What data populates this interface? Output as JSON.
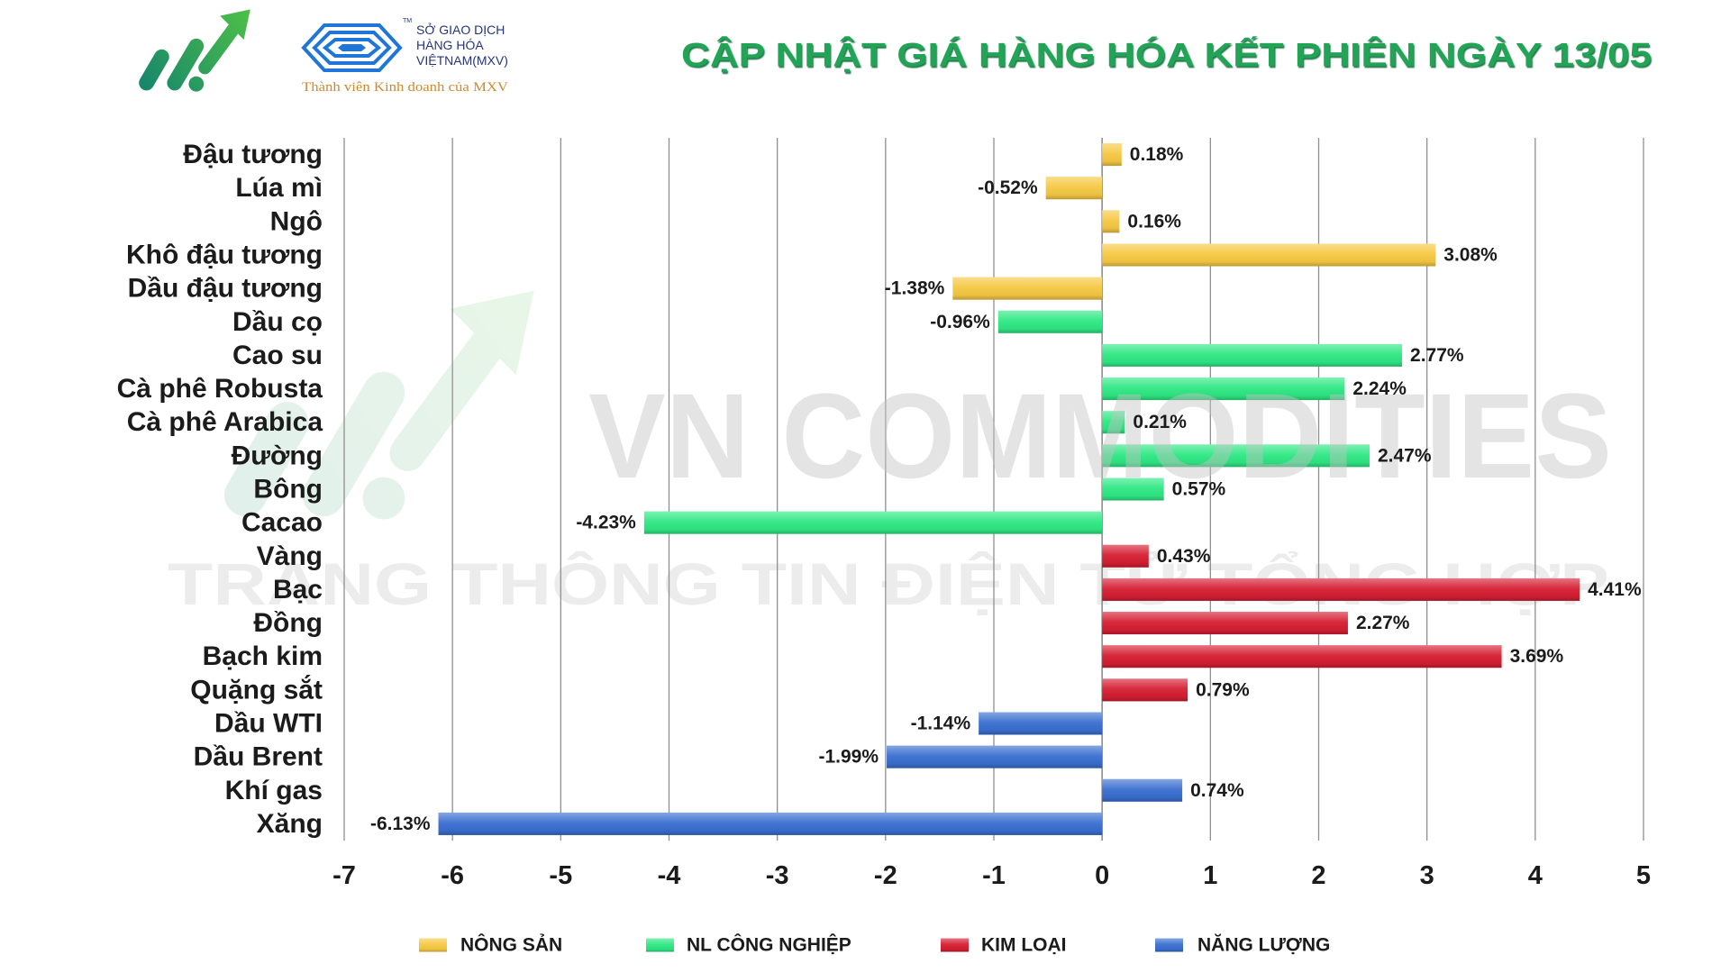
{
  "header": {
    "mxv": {
      "tm": "TM",
      "name_lines": [
        "SỞ GIAO DỊCH",
        "HÀNG HÓA",
        "VIỆTNAM(MXV)"
      ],
      "tagline": "Thành viên Kinh doanh của MXV"
    }
  },
  "watermark": {
    "brand": "VN COMMODITIES",
    "subtitle": "TRANG THÔNG TIN ĐIỆN TỬ TỔNG HỢP"
  },
  "colors": {
    "title": "#22a456",
    "title_shadow": "#11693a",
    "grid": "#8f8f8f",
    "text": "#1b1b1b",
    "watermark_brand": "#c4c4c4",
    "watermark_subtitle": "#ececec",
    "logo_teal": "#12816f",
    "logo_green": "#4fc146",
    "mxv_blue": "#1f76d8",
    "mxv_text": "#26357a",
    "tagline": "#cf8a2d"
  },
  "chart_data": {
    "type": "bar",
    "orientation": "horizontal",
    "title": "CẬP NHẬT GIÁ HÀNG HÓA KẾT PHIÊN NGÀY 13/05",
    "xlabel": "",
    "ylabel": "",
    "xlim": [
      -7,
      5
    ],
    "xticks": [
      -7,
      -6,
      -5,
      -4,
      -3,
      -2,
      -1,
      0,
      1,
      2,
      3,
      4,
      5
    ],
    "grid": "vertical",
    "legend": "bottom",
    "series": [
      {
        "name": "NÔNG SẢN",
        "color": "#f6c843",
        "items": [
          {
            "label": "Đậu tương",
            "value": 0.18,
            "text": "0.18%"
          },
          {
            "label": "Lúa mì",
            "value": -0.52,
            "text": "-0.52%"
          },
          {
            "label": "Ngô",
            "value": 0.16,
            "text": "0.16%"
          },
          {
            "label": "Khô đậu tương",
            "value": 3.08,
            "text": "3.08%"
          },
          {
            "label": "Dầu đậu tương",
            "value": -1.38,
            "text": "-1.38%"
          }
        ]
      },
      {
        "name": "NL CÔNG NGHIỆP",
        "color": "#2fe884",
        "items": [
          {
            "label": "Dầu cọ",
            "value": -0.96,
            "text": "-0.96%"
          },
          {
            "label": "Cao su",
            "value": 2.77,
            "text": "2.77%"
          },
          {
            "label": "Cà phê Robusta",
            "value": 2.24,
            "text": "2.24%"
          },
          {
            "label": "Cà phê Arabica",
            "value": 0.21,
            "text": "0.21%"
          },
          {
            "label": "Đường",
            "value": 2.47,
            "text": "2.47%"
          },
          {
            "label": "Bông",
            "value": 0.57,
            "text": "0.57%"
          },
          {
            "label": "Cacao",
            "value": -4.23,
            "text": "-4.23%"
          }
        ]
      },
      {
        "name": "KIM LOẠI",
        "color": "#d61f33",
        "items": [
          {
            "label": "Vàng",
            "value": 0.43,
            "text": "0.43%"
          },
          {
            "label": "Bạc",
            "value": 4.41,
            "text": "4.41%"
          },
          {
            "label": "Đồng",
            "value": 2.27,
            "text": "2.27%"
          },
          {
            "label": "Bạch kim",
            "value": 3.69,
            "text": "3.69%"
          },
          {
            "label": "Quặng sắt",
            "value": 0.79,
            "text": "0.79%"
          }
        ]
      },
      {
        "name": "NĂNG LƯỢNG",
        "color": "#3a6fd0",
        "items": [
          {
            "label": "Dầu WTI",
            "value": -1.14,
            "text": "-1.14%"
          },
          {
            "label": "Dầu Brent",
            "value": -1.99,
            "text": "-1.99%"
          },
          {
            "label": "Khí gas",
            "value": 0.74,
            "text": "0.74%"
          },
          {
            "label": "Xăng",
            "value": -6.13,
            "text": "-6.13%"
          }
        ]
      }
    ]
  }
}
